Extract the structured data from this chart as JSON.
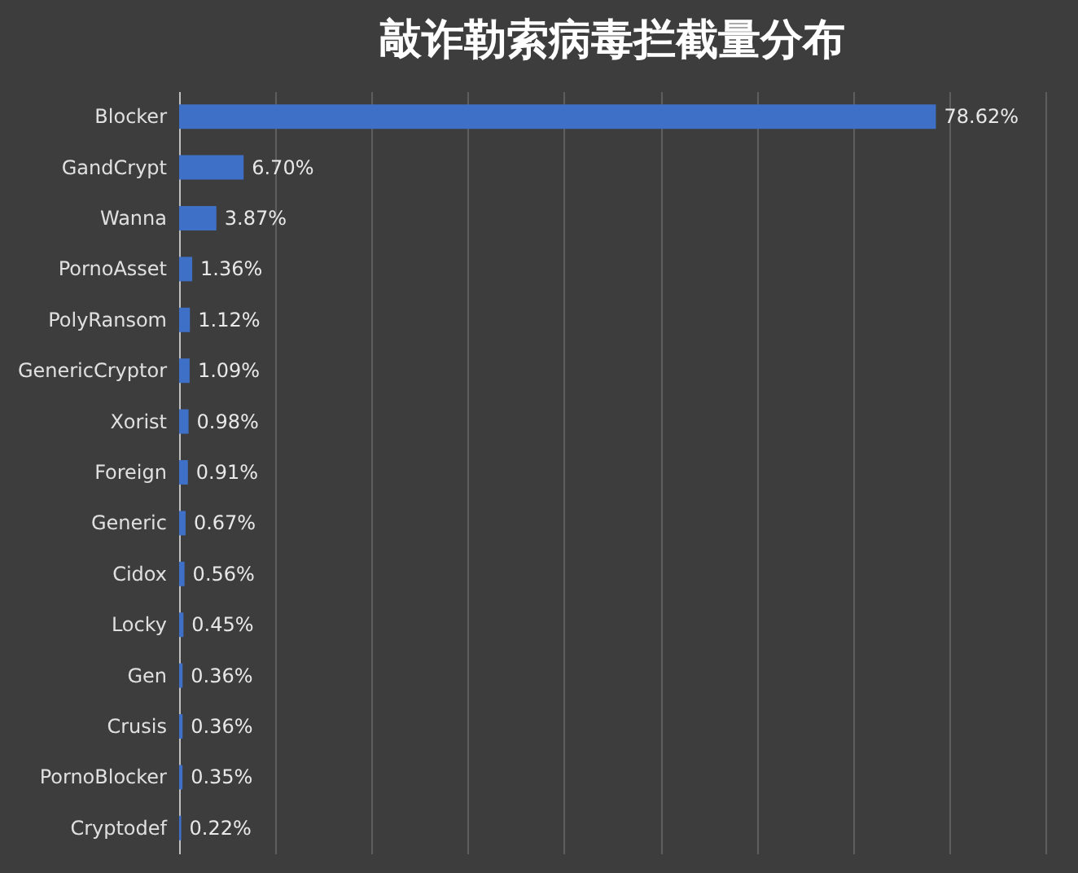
{
  "chart_data": {
    "type": "bar",
    "orientation": "horizontal",
    "title": "敲诈勒索病毒拦截量分布",
    "categories": [
      "Blocker",
      "GandCrypt",
      "Wanna",
      "PornoAsset",
      "PolyRansom",
      "GenericCryptor",
      "Xorist",
      "Foreign",
      "Generic",
      "Cidox",
      "Locky",
      "Gen",
      "Crusis",
      "PornoBlocker",
      "Cryptodef"
    ],
    "values": [
      78.62,
      6.7,
      3.87,
      1.36,
      1.12,
      1.09,
      0.98,
      0.91,
      0.67,
      0.56,
      0.45,
      0.36,
      0.36,
      0.35,
      0.22
    ],
    "value_labels": [
      "78.62%",
      "6.70%",
      "3.87%",
      "1.36%",
      "1.12%",
      "1.09%",
      "0.98%",
      "0.91%",
      "0.67%",
      "0.56%",
      "0.45%",
      "0.36%",
      "0.36%",
      "0.35%",
      "0.22%"
    ],
    "color": "#3f70c8",
    "xlim": [
      0,
      90
    ],
    "xticks": [
      {
        "value": 0,
        "label": null
      },
      {
        "value": 10,
        "label": null
      },
      {
        "value": 20,
        "label": null
      },
      {
        "value": 30,
        "label": null
      },
      {
        "value": 40,
        "label": null
      },
      {
        "value": 50,
        "label": null
      },
      {
        "value": 60,
        "label": null
      },
      {
        "value": 70,
        "label": null
      },
      {
        "value": 80,
        "label": null
      },
      {
        "value": 90,
        "label": null
      }
    ],
    "grid": "x",
    "tick_labels": "y"
  }
}
